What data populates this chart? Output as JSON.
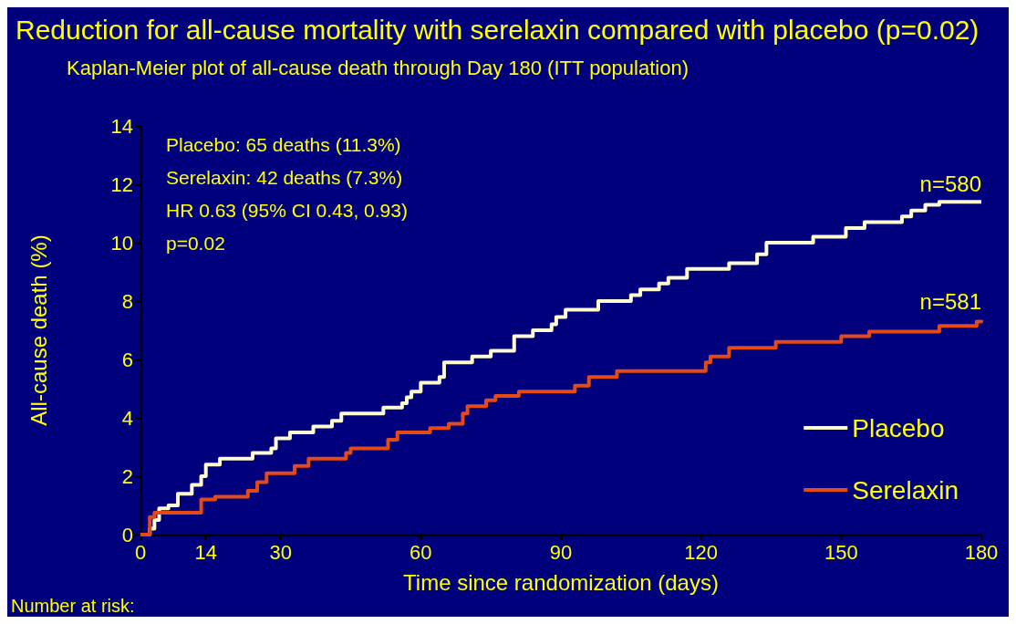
{
  "chart_data": {
    "type": "step",
    "title": "Reduction for all-cause mortality with serelaxin compared with placebo (p=0.02)",
    "subtitle": "Kaplan-Meier plot of all-cause death through Day 180 (ITT population)",
    "xlabel": "Time since randomization (days)",
    "ylabel": "All-cause death (%)",
    "annotations": [
      "Placebo: 65 deaths (11.3%)",
      "Serelaxin: 42 deaths (7.3%)",
      "HR 0.63 (95% CI 0.43, 0.93)",
      "p=0.02",
      {
        "text": "n=580",
        "x": 180,
        "y": 11.4
      },
      {
        "text": "n=581",
        "x": 180,
        "y": 7.35
      },
      "Number at risk:"
    ],
    "series": [
      {
        "name": "Placebo",
        "color": "#fffbd0",
        "x": [
          0,
          2,
          3,
          4,
          6,
          8,
          11,
          13,
          14,
          17,
          24,
          28,
          29,
          32,
          37,
          41,
          43,
          52,
          56,
          57,
          58,
          60,
          64,
          65,
          71,
          75,
          80,
          84,
          88,
          89,
          91,
          98,
          105,
          107,
          111,
          113,
          117,
          126,
          132,
          134,
          144,
          151,
          155,
          163,
          165,
          168,
          171,
          180
        ],
        "values": [
          0,
          0.2,
          0.5,
          0.9,
          1.0,
          1.4,
          1.7,
          2.0,
          2.4,
          2.6,
          2.8,
          2.95,
          3.3,
          3.5,
          3.7,
          3.9,
          4.15,
          4.35,
          4.5,
          4.7,
          4.9,
          5.2,
          5.4,
          5.9,
          6.1,
          6.3,
          6.8,
          7.0,
          7.2,
          7.45,
          7.7,
          8.0,
          8.2,
          8.4,
          8.6,
          8.8,
          9.1,
          9.3,
          9.6,
          10.0,
          10.2,
          10.5,
          10.7,
          10.9,
          11.1,
          11.3,
          11.4,
          11.4
        ]
      },
      {
        "name": "Serelaxin",
        "color": "#e34a16",
        "x": [
          0,
          2,
          3,
          13,
          16,
          23,
          25,
          27,
          33,
          36,
          44,
          45,
          53,
          55,
          62,
          66,
          69,
          70,
          74,
          76,
          81,
          93,
          96,
          102,
          121,
          122,
          126,
          136,
          150,
          156,
          171,
          179,
          180
        ],
        "values": [
          0,
          0.6,
          0.75,
          1.2,
          1.3,
          1.5,
          1.8,
          2.1,
          2.35,
          2.6,
          2.8,
          2.95,
          3.25,
          3.5,
          3.65,
          3.8,
          4.15,
          4.4,
          4.6,
          4.75,
          4.9,
          5.1,
          5.4,
          5.6,
          5.9,
          6.1,
          6.4,
          6.6,
          6.8,
          6.95,
          7.15,
          7.3,
          7.35
        ]
      }
    ],
    "xlim": [
      0,
      180
    ],
    "xticks": [
      0,
      14,
      30,
      60,
      90,
      120,
      150,
      180
    ],
    "ylim": [
      0,
      14
    ],
    "yticks": [
      0,
      2,
      4,
      6,
      8,
      10,
      12,
      14
    ],
    "legend": "bottom right",
    "marker": "none",
    "line_style": "solid",
    "grid": false
  }
}
